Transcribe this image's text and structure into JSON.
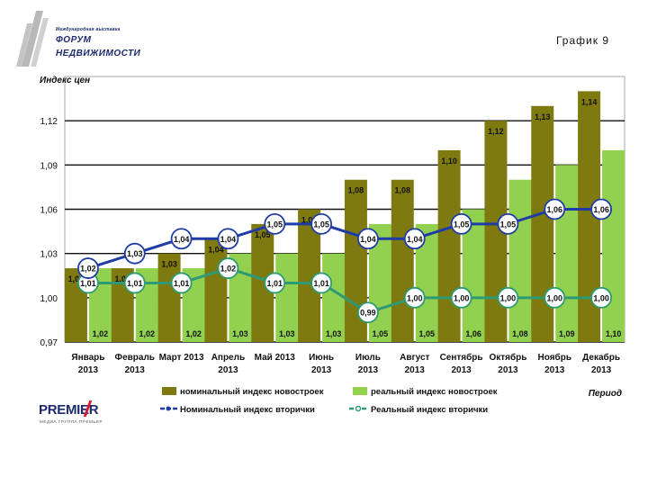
{
  "header": {
    "page_title": "График 9",
    "logo_top": {
      "line_small": "Международная выставка",
      "line1": "ФОРУМ",
      "line2": "НЕДВИЖИМОСТИ"
    },
    "logo_bottom": {
      "name": "PREMIER",
      "tagline": "МЕДИА ГРУППА ПРЕМЬЕР"
    }
  },
  "colors": {
    "bar_nominal": "#7f7a10",
    "bar_real": "#92d050",
    "line_nominal": "#1f3ca6",
    "line_real": "#2e9a73"
  },
  "chart_data": {
    "type": "bar+line",
    "ylabel": "Индекс цен",
    "xlabel": "Период",
    "ylim": [
      0.97,
      1.15
    ],
    "yticks": [
      "1,12",
      "1,09",
      "1,06",
      "1,03",
      "1,00",
      "0,97"
    ],
    "ytick_values": [
      1.12,
      1.09,
      1.06,
      1.03,
      1.0,
      0.97
    ],
    "categories": [
      [
        "Январь",
        "2013"
      ],
      [
        "Февраль",
        "2013"
      ],
      [
        "Март 2013",
        ""
      ],
      [
        "Апрель",
        "2013"
      ],
      [
        "Май 2013",
        ""
      ],
      [
        "Июнь",
        "2013"
      ],
      [
        "Июль",
        "2013"
      ],
      [
        "Август",
        "2013"
      ],
      [
        "Сентябрь",
        "2013"
      ],
      [
        "Октябрь",
        "2013"
      ],
      [
        "Ноябрь",
        "2013"
      ],
      [
        "Декабрь",
        "2013"
      ]
    ],
    "series": [
      {
        "name": "номинальный индекс новостроек",
        "kind": "bar",
        "values": [
          1.02,
          1.02,
          1.03,
          1.04,
          1.05,
          1.06,
          1.08,
          1.08,
          1.1,
          1.12,
          1.13,
          1.14
        ],
        "labels": [
          "1,02",
          "1,02",
          "1,03",
          "1,04",
          "1,05",
          "1,06",
          "1,08",
          "1,08",
          "1,10",
          "1,12",
          "1,13",
          "1,14"
        ]
      },
      {
        "name": "реальный индекс новостроек",
        "kind": "bar",
        "values": [
          1.02,
          1.02,
          1.02,
          1.03,
          1.03,
          1.03,
          1.05,
          1.05,
          1.06,
          1.08,
          1.09,
          1.1
        ],
        "labels": [
          "1,02",
          "1,02",
          "1,02",
          "1,03",
          "1,03",
          "1,03",
          "1,05",
          "1,05",
          "1,06",
          "1,08",
          "1,09",
          "1,10"
        ]
      },
      {
        "name": "Номинальный индекс вторички",
        "kind": "line",
        "values": [
          1.02,
          1.03,
          1.04,
          1.04,
          1.05,
          1.05,
          1.04,
          1.04,
          1.05,
          1.05,
          1.06,
          1.06
        ],
        "labels": [
          "1,02",
          "1,03",
          "1,04",
          "1,04",
          "1,05",
          "1,05",
          "1,04",
          "1,04",
          "1,05",
          "1,05",
          "1,06",
          "1,06"
        ]
      },
      {
        "name": "Реальный индекс вторички",
        "kind": "line",
        "values": [
          1.01,
          1.01,
          1.01,
          1.02,
          1.01,
          1.01,
          0.99,
          1.0,
          1.0,
          1.0,
          1.0,
          1.0
        ],
        "labels": [
          "1,01",
          "1,01",
          "1,01",
          "1,02",
          "1,01",
          "1,01",
          "0,99",
          "1,00",
          "1,00",
          "1,00",
          "1,00",
          "1,00"
        ]
      }
    ],
    "legend": {
      "placement": "bottom",
      "items": [
        "номинальный индекс новостроек",
        "реальный индекс новостроек",
        "Номинальный индекс вторички",
        "Реальный индекс вторички"
      ]
    }
  }
}
